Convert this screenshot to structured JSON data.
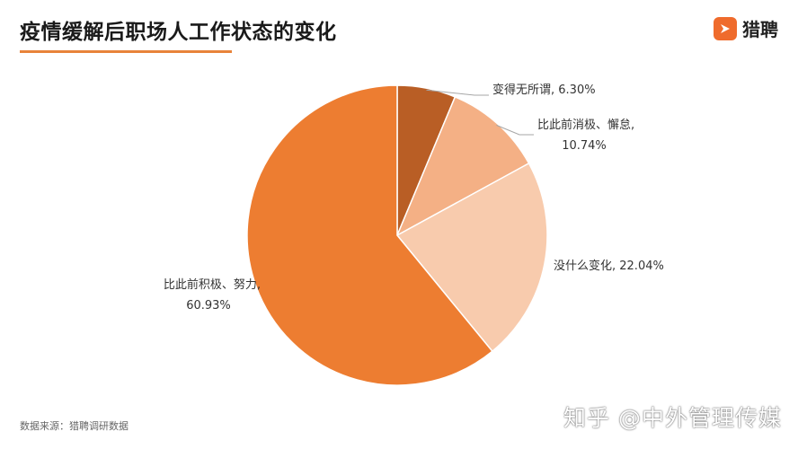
{
  "header": {
    "title": "疫情缓解后职场人工作状态的变化",
    "brand_name": "猎聘",
    "brand_icon": "liepin-logo-icon"
  },
  "footer": {
    "source": "数据来源：猎聘调研数据",
    "watermark": "知乎 @中外管理传媒"
  },
  "colors": {
    "accent": "#e8833a",
    "brand": "#ef6b2c",
    "slices": [
      "#b95e25",
      "#f4b085",
      "#f8cbad",
      "#ed7d31"
    ]
  },
  "chart_data": {
    "type": "pie",
    "title": "",
    "start_angle": "12 o'clock",
    "direction": "clockwise",
    "slices": [
      {
        "label_lines": [
          "变得无所谓, 6.30%"
        ],
        "value": 6.3
      },
      {
        "label_lines": [
          "比此前消极、懈怠,",
          "10.74%"
        ],
        "value": 10.74
      },
      {
        "label_lines": [
          "没什么变化, 22.04%"
        ],
        "value": 22.04
      },
      {
        "label_lines": [
          "比此前积极、努力,",
          "60.93%"
        ],
        "value": 60.93
      }
    ]
  }
}
